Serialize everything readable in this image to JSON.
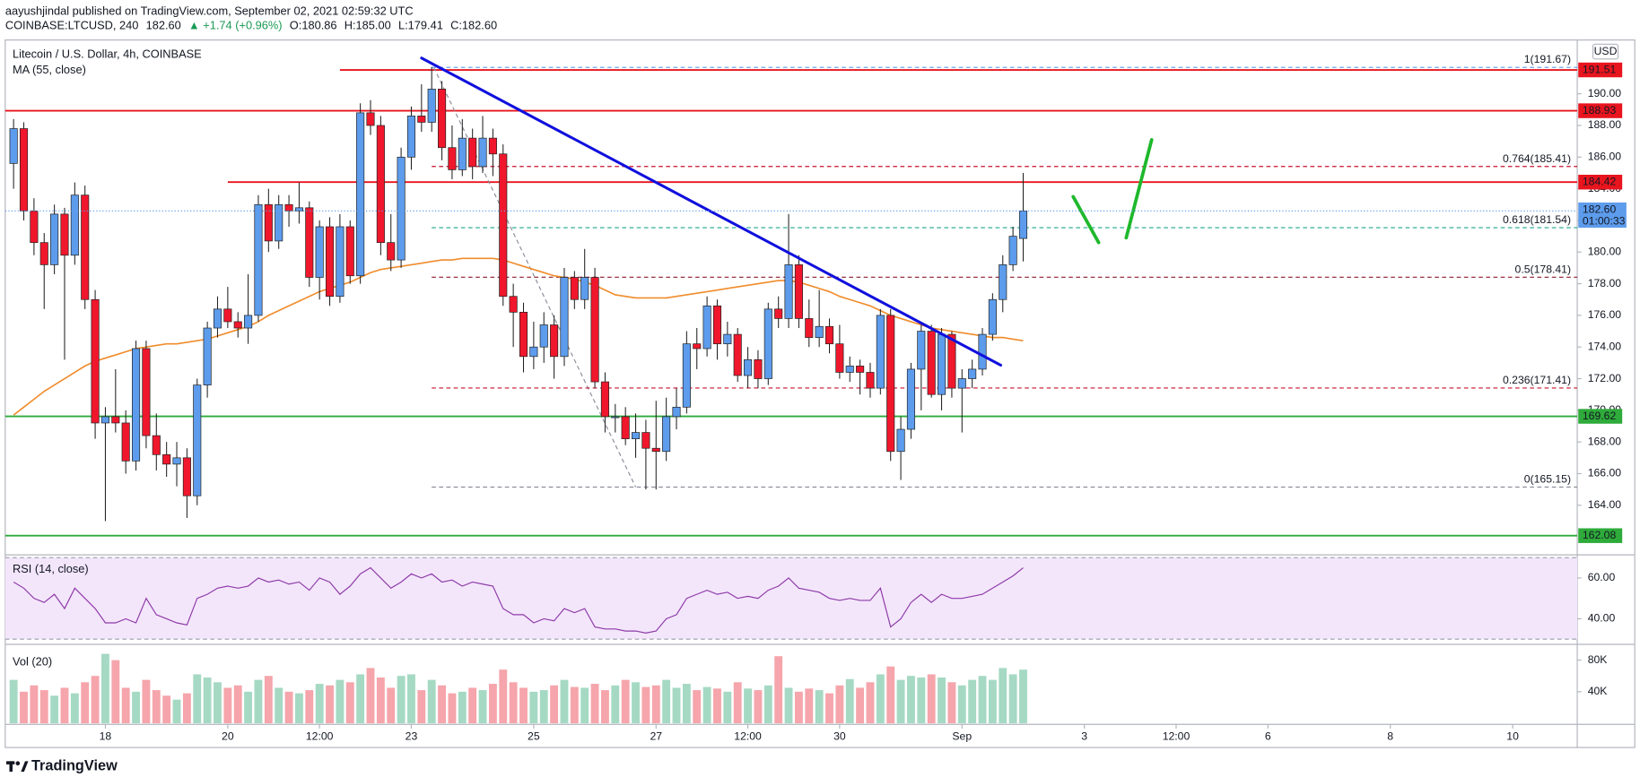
{
  "header": {
    "published": "aayushjindal published on TradingView.com, September 02, 2021 02:59:32 UTC",
    "symbol": "COINBASE:LTCUSD, 240",
    "last": "182.60",
    "change": "▲ +1.74 (+0.96%)",
    "ohlc": [
      "O:180.86",
      "H:185.00",
      "L:179.41",
      "C:182.60"
    ]
  },
  "chart_data": {
    "type": "candlestick",
    "title": "Litecoin / U.S. Dollar, 4h, COINBASE",
    "currency": "USD",
    "up_color": "#5d9cec",
    "down_color": "#f0172c",
    "xlim": [
      -0.82,
      153.33
    ],
    "xticks": [
      {
        "value": 9,
        "label": "18"
      },
      {
        "value": 21,
        "label": "20"
      },
      {
        "value": 30,
        "label": "12:00"
      },
      {
        "value": 39,
        "label": "23"
      },
      {
        "value": 51,
        "label": "25"
      },
      {
        "value": 63,
        "label": "27"
      },
      {
        "value": 72,
        "label": "12:00"
      },
      {
        "value": 81,
        "label": "30"
      },
      {
        "value": 93,
        "label": "Sep"
      },
      {
        "value": 105,
        "label": "3"
      },
      {
        "value": 114,
        "label": "12:00"
      },
      {
        "value": 123,
        "label": "6"
      },
      {
        "value": 135,
        "label": "8"
      },
      {
        "value": 147,
        "label": "10"
      }
    ],
    "ylim": [
      161.0,
      193.4
    ],
    "yticks": [
      {
        "value": 164,
        "label": "164.00"
      },
      {
        "value": 166,
        "label": "166.00"
      },
      {
        "value": 168,
        "label": "168.00"
      },
      {
        "value": 170,
        "label": "170.00"
      },
      {
        "value": 172,
        "label": "172.00"
      },
      {
        "value": 174,
        "label": "174.00"
      },
      {
        "value": 176,
        "label": "176.00"
      },
      {
        "value": 178,
        "label": "178.00"
      },
      {
        "value": 180,
        "label": "180.00"
      },
      {
        "value": 182,
        "label": "182.00"
      },
      {
        "value": 184,
        "label": "184.00"
      },
      {
        "value": 186,
        "label": "186.00"
      },
      {
        "value": 188,
        "label": "188.00"
      },
      {
        "value": 190,
        "label": "190.00"
      }
    ],
    "candles": [
      [
        185.6,
        188.4,
        184.0,
        187.8
      ],
      [
        187.8,
        188.2,
        182.0,
        182.6
      ],
      [
        182.6,
        183.4,
        179.8,
        180.6
      ],
      [
        180.6,
        181.2,
        176.4,
        179.2
      ],
      [
        179.2,
        183.0,
        178.6,
        182.4
      ],
      [
        182.4,
        182.8,
        173.2,
        179.8
      ],
      [
        179.8,
        184.4,
        179.2,
        183.6
      ],
      [
        183.6,
        184.2,
        176.4,
        177.0
      ],
      [
        177.0,
        177.6,
        168.2,
        169.2
      ],
      [
        169.2,
        170.2,
        163.0,
        169.6
      ],
      [
        169.6,
        172.6,
        168.6,
        169.2
      ],
      [
        169.2,
        170.0,
        166.0,
        166.8
      ],
      [
        166.8,
        174.4,
        166.2,
        173.9
      ],
      [
        173.9,
        174.4,
        167.6,
        168.4
      ],
      [
        168.4,
        169.8,
        166.2,
        167.2
      ],
      [
        167.2,
        168.0,
        165.8,
        166.6
      ],
      [
        166.6,
        168.0,
        165.2,
        167.0
      ],
      [
        167.0,
        167.6,
        163.2,
        164.6
      ],
      [
        164.6,
        172.0,
        164.0,
        171.6
      ],
      [
        171.6,
        175.6,
        170.8,
        175.2
      ],
      [
        175.2,
        177.2,
        174.6,
        176.4
      ],
      [
        176.4,
        177.8,
        175.2,
        175.6
      ],
      [
        175.6,
        176.2,
        174.6,
        175.2
      ],
      [
        175.2,
        178.6,
        174.2,
        176.0
      ],
      [
        176.0,
        183.6,
        175.6,
        183.0
      ],
      [
        183.0,
        184.0,
        180.0,
        180.7
      ],
      [
        180.7,
        183.6,
        180.2,
        183.0
      ],
      [
        183.0,
        183.6,
        181.6,
        182.6
      ],
      [
        182.6,
        184.4,
        181.8,
        182.8
      ],
      [
        182.8,
        183.2,
        177.8,
        178.4
      ],
      [
        178.4,
        182.0,
        177.0,
        181.6
      ],
      [
        181.6,
        182.2,
        176.6,
        177.2
      ],
      [
        177.2,
        182.4,
        176.8,
        181.6
      ],
      [
        181.6,
        182.0,
        178.0,
        178.5
      ],
      [
        178.5,
        189.4,
        178.0,
        188.8
      ],
      [
        188.8,
        189.6,
        187.4,
        188.0
      ],
      [
        188.0,
        188.6,
        179.8,
        180.6
      ],
      [
        180.6,
        182.4,
        178.8,
        179.5
      ],
      [
        179.5,
        186.6,
        179.0,
        186.0
      ],
      [
        186.0,
        189.2,
        185.2,
        188.6
      ],
      [
        188.6,
        190.6,
        187.6,
        188.2
      ],
      [
        188.2,
        191.7,
        187.6,
        190.3
      ],
      [
        190.3,
        190.8,
        185.8,
        186.6
      ],
      [
        186.6,
        188.0,
        184.6,
        185.2
      ],
      [
        185.2,
        188.4,
        184.8,
        187.2
      ],
      [
        187.2,
        187.8,
        184.6,
        185.4
      ],
      [
        185.4,
        188.6,
        185.0,
        187.2
      ],
      [
        187.2,
        187.8,
        184.8,
        186.2
      ],
      [
        186.2,
        186.8,
        176.6,
        177.2
      ],
      [
        177.2,
        178.0,
        174.0,
        176.2
      ],
      [
        176.2,
        176.8,
        172.4,
        173.4
      ],
      [
        173.4,
        175.6,
        172.6,
        174.0
      ],
      [
        174.0,
        176.2,
        173.0,
        175.4
      ],
      [
        175.4,
        176.0,
        172.0,
        173.4
      ],
      [
        173.4,
        179.0,
        172.8,
        178.4
      ],
      [
        178.4,
        178.8,
        176.4,
        177.0
      ],
      [
        177.0,
        180.2,
        176.4,
        178.4
      ],
      [
        178.4,
        179.0,
        171.4,
        171.8
      ],
      [
        171.8,
        172.4,
        168.6,
        169.6
      ],
      [
        169.6,
        170.4,
        168.6,
        169.6
      ],
      [
        169.6,
        170.2,
        167.8,
        168.2
      ],
      [
        168.2,
        169.8,
        167.0,
        168.6
      ],
      [
        168.6,
        169.4,
        165.0,
        167.6
      ],
      [
        167.6,
        170.6,
        165.0,
        167.4
      ],
      [
        167.4,
        170.8,
        166.8,
        169.6
      ],
      [
        169.6,
        171.4,
        168.8,
        170.2
      ],
      [
        170.2,
        175.0,
        169.8,
        174.2
      ],
      [
        174.2,
        175.2,
        172.6,
        173.9
      ],
      [
        173.9,
        177.2,
        173.4,
        176.6
      ],
      [
        176.6,
        177.0,
        173.2,
        174.2
      ],
      [
        174.2,
        175.6,
        173.4,
        174.8
      ],
      [
        174.8,
        175.2,
        171.8,
        172.2
      ],
      [
        172.2,
        174.0,
        171.4,
        173.2
      ],
      [
        173.2,
        173.8,
        171.4,
        172.0
      ],
      [
        172.0,
        176.8,
        171.6,
        176.4
      ],
      [
        176.4,
        177.2,
        175.2,
        175.8
      ],
      [
        175.8,
        182.4,
        175.2,
        179.2
      ],
      [
        179.2,
        179.8,
        175.2,
        175.8
      ],
      [
        175.8,
        177.0,
        174.0,
        174.6
      ],
      [
        174.6,
        177.6,
        174.0,
        175.3
      ],
      [
        175.3,
        175.8,
        173.6,
        174.2
      ],
      [
        174.2,
        175.4,
        172.0,
        172.4
      ],
      [
        172.4,
        173.4,
        171.8,
        172.8
      ],
      [
        172.8,
        173.2,
        171.0,
        172.4
      ],
      [
        172.4,
        173.0,
        170.8,
        171.4
      ],
      [
        171.4,
        176.4,
        171.0,
        176.0
      ],
      [
        176.0,
        176.4,
        166.8,
        167.4
      ],
      [
        167.4,
        169.6,
        165.6,
        168.8
      ],
      [
        168.8,
        173.0,
        168.2,
        172.6
      ],
      [
        172.6,
        175.4,
        170.0,
        175.0
      ],
      [
        175.0,
        175.4,
        170.8,
        171.0
      ],
      [
        171.0,
        175.2,
        170.0,
        174.8
      ],
      [
        174.8,
        175.0,
        170.8,
        171.4
      ],
      [
        171.4,
        172.6,
        168.6,
        172.0
      ],
      [
        172.0,
        173.2,
        171.4,
        172.6
      ],
      [
        172.6,
        175.2,
        172.2,
        174.8
      ],
      [
        174.8,
        177.4,
        174.4,
        177.0
      ],
      [
        177.0,
        179.8,
        176.2,
        179.2
      ],
      [
        179.2,
        181.6,
        178.8,
        181.0
      ],
      [
        180.86,
        185.0,
        179.41,
        182.6
      ]
    ],
    "ma": {
      "name": "MA (55, close)",
      "color": "#f08c2c",
      "values": [
        169.7,
        170.2,
        170.7,
        171.2,
        171.6,
        172.0,
        172.4,
        172.8,
        173.1,
        173.3,
        173.5,
        173.7,
        173.9,
        174.0,
        174.1,
        174.2,
        174.2,
        174.3,
        174.4,
        174.5,
        174.7,
        174.9,
        175.1,
        175.3,
        175.6,
        176.0,
        176.3,
        176.6,
        176.9,
        177.2,
        177.5,
        177.7,
        177.9,
        178.1,
        178.4,
        178.7,
        178.9,
        179.0,
        179.1,
        179.2,
        179.3,
        179.4,
        179.5,
        179.5,
        179.6,
        179.6,
        179.6,
        179.6,
        179.5,
        179.3,
        179.1,
        178.9,
        178.7,
        178.5,
        178.4,
        178.3,
        178.1,
        177.9,
        177.6,
        177.3,
        177.2,
        177.1,
        177.1,
        177.1,
        177.1,
        177.2,
        177.3,
        177.4,
        177.5,
        177.6,
        177.7,
        177.8,
        177.9,
        178.0,
        178.1,
        178.2,
        178.2,
        178.1,
        177.9,
        177.7,
        177.5,
        177.2,
        177.0,
        176.8,
        176.6,
        176.3,
        176.0,
        175.8,
        175.6,
        175.4,
        175.2,
        175.1,
        175.0,
        174.9,
        174.8,
        174.7,
        174.6,
        174.6,
        174.5,
        174.4
      ]
    },
    "hlines": [
      {
        "value": 191.51,
        "color": "#e8141e",
        "start": 32
      },
      {
        "value": 188.93,
        "color": "#e8141e"
      },
      {
        "value": 184.42,
        "color": "#e8141e",
        "start": 21
      },
      {
        "value": 169.62,
        "color": "#2eab3a"
      },
      {
        "value": 162.08,
        "color": "#2eab3a"
      }
    ],
    "last_price": {
      "value": 182.6,
      "label": "182.60",
      "countdown": "01:00:33",
      "color": "#5d9cec"
    },
    "fib": {
      "start": 41,
      "anchor": [
        [
          41.2,
          191.67
        ],
        [
          61,
          165.15
        ]
      ],
      "levels": [
        {
          "value": 191.67,
          "label": "1(191.67)",
          "color": "#5d9cec"
        },
        {
          "value": 185.41,
          "label": "0.764(185.41)",
          "color": "#c8102e"
        },
        {
          "value": 181.54,
          "label": "0.618(181.54)",
          "color": "#1aa68a"
        },
        {
          "value": 178.41,
          "label": "0.5(178.41)",
          "color": "#8b1a2b"
        },
        {
          "value": 171.41,
          "label": "0.236(171.41)",
          "color": "#c8102e"
        },
        {
          "value": 165.15,
          "label": "0(165.15)",
          "color": "#8a8e99"
        }
      ]
    },
    "trendline": {
      "color": "#1010dd",
      "points": [
        [
          40,
          192.26
        ],
        [
          96.8,
          172.85
        ]
      ]
    },
    "drawings": [
      {
        "color": "#1fb82c",
        "points": [
          [
            103.9,
            183.5
          ],
          [
            106.4,
            180.6
          ]
        ]
      },
      {
        "color": "#1fb82c",
        "points": [
          [
            109.1,
            180.9
          ],
          [
            111.6,
            187.1
          ]
        ]
      }
    ],
    "rsi": {
      "name": "RSI (14, close)",
      "color": "#8e3aa8",
      "ylim": [
        28.5,
        70.3
      ],
      "band": [
        30,
        70
      ],
      "yticks": [
        {
          "value": 40,
          "label": "40.00"
        },
        {
          "value": 60,
          "label": "60.00"
        }
      ],
      "values": [
        58,
        55,
        50,
        48,
        52,
        45,
        55,
        50,
        45,
        38,
        38,
        40,
        38,
        50,
        42,
        40,
        38,
        37,
        50,
        52,
        55,
        56,
        55,
        56,
        60,
        58,
        59,
        57,
        58,
        54,
        60,
        58,
        52,
        56,
        62,
        65,
        60,
        55,
        58,
        62,
        60,
        62,
        58,
        59,
        56,
        58,
        57,
        56,
        45,
        42,
        42,
        38,
        40,
        39,
        45,
        43,
        45,
        36,
        35,
        35,
        34,
        34,
        33,
        34,
        40,
        42,
        50,
        52,
        54,
        52,
        53,
        50,
        51,
        50,
        54,
        56,
        60,
        55,
        54,
        53,
        50,
        49,
        50,
        49,
        49,
        55,
        36,
        40,
        48,
        52,
        48,
        52,
        50,
        50,
        51,
        52,
        55,
        58,
        61,
        65
      ]
    },
    "volume": {
      "name": "Vol (20)",
      "up_color": "#a5d9c3",
      "down_color": "#f5a5ab",
      "ylim": [
        0,
        100000
      ],
      "yticks": [
        {
          "value": 40000,
          "label": "40K"
        },
        {
          "value": 80000,
          "label": "80K"
        }
      ],
      "values": [
        55000,
        40000,
        48000,
        42000,
        35000,
        45000,
        38000,
        52000,
        60000,
        88000,
        80000,
        45000,
        40000,
        55000,
        42000,
        35000,
        30000,
        38000,
        62000,
        58000,
        52000,
        45000,
        48000,
        40000,
        55000,
        60000,
        45000,
        40000,
        38000,
        42000,
        50000,
        48000,
        55000,
        52000,
        62000,
        70000,
        58000,
        45000,
        60000,
        62000,
        42000,
        55000,
        48000,
        38000,
        40000,
        45000,
        42000,
        50000,
        68000,
        52000,
        45000,
        40000,
        42000,
        48000,
        55000,
        46000,
        45000,
        50000,
        42000,
        48000,
        55000,
        52000,
        46000,
        48000,
        55000,
        45000,
        50000,
        42000,
        46000,
        44000,
        40000,
        52000,
        44000,
        42000,
        48000,
        85000,
        45000,
        40000,
        44000,
        42000,
        38000,
        48000,
        56000,
        45000,
        52000,
        62000,
        72000,
        55000,
        60000,
        58000,
        62000,
        58000,
        52000,
        48000,
        55000,
        60000,
        55000,
        70000,
        62000,
        68000
      ]
    }
  },
  "footer": {
    "brand": "TradingView"
  }
}
